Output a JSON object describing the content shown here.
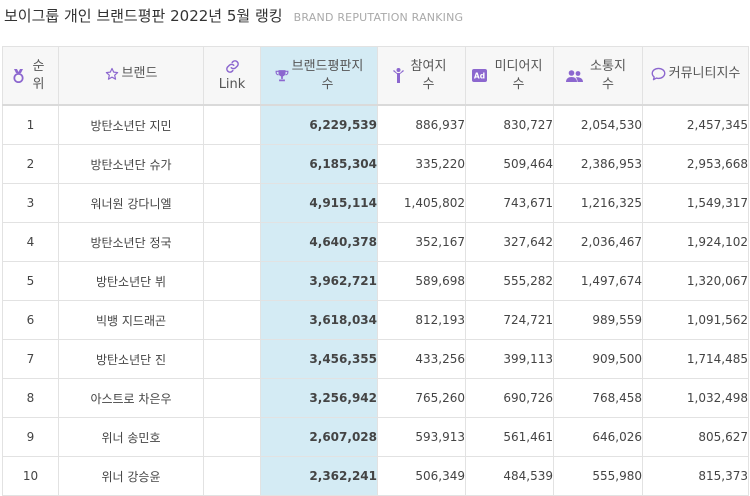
{
  "page": {
    "title": "보이그룹 개인 브랜드평판 2022년 5월 랭킹",
    "subtitle": "BRAND REPUTATION RANKING"
  },
  "table": {
    "headers": {
      "rank": "순위",
      "brand": "브랜드",
      "link": "Link",
      "score": "브랜드평판지수",
      "participation": "참여지수",
      "media": "미디어지수",
      "communication": "소통지수",
      "community": "커뮤니티지수"
    },
    "rows": [
      {
        "rank": "1",
        "brand": "방탄소년단 지민",
        "link": "",
        "score": "6,229,539",
        "participation": "886,937",
        "media": "830,727",
        "communication": "2,054,530",
        "community": "2,457,345"
      },
      {
        "rank": "2",
        "brand": "방탄소년단 슈가",
        "link": "",
        "score": "6,185,304",
        "participation": "335,220",
        "media": "509,464",
        "communication": "2,386,953",
        "community": "2,953,668"
      },
      {
        "rank": "3",
        "brand": "워너원 강다니엘",
        "link": "",
        "score": "4,915,114",
        "participation": "1,405,802",
        "media": "743,671",
        "communication": "1,216,325",
        "community": "1,549,317"
      },
      {
        "rank": "4",
        "brand": "방탄소년단 정국",
        "link": "",
        "score": "4,640,378",
        "participation": "352,167",
        "media": "327,642",
        "communication": "2,036,467",
        "community": "1,924,102"
      },
      {
        "rank": "5",
        "brand": "방탄소년단 뷔",
        "link": "",
        "score": "3,962,721",
        "participation": "589,698",
        "media": "555,282",
        "communication": "1,497,674",
        "community": "1,320,067"
      },
      {
        "rank": "6",
        "brand": "빅뱅 지드래곤",
        "link": "",
        "score": "3,618,034",
        "participation": "812,193",
        "media": "724,721",
        "communication": "989,559",
        "community": "1,091,562"
      },
      {
        "rank": "7",
        "brand": "방탄소년단 진",
        "link": "",
        "score": "3,456,355",
        "participation": "433,256",
        "media": "399,113",
        "communication": "909,500",
        "community": "1,714,485"
      },
      {
        "rank": "8",
        "brand": "아스트로 차은우",
        "link": "",
        "score": "3,256,942",
        "participation": "765,260",
        "media": "690,726",
        "communication": "768,458",
        "community": "1,032,498"
      },
      {
        "rank": "9",
        "brand": "위너 송민호",
        "link": "",
        "score": "2,607,028",
        "participation": "593,913",
        "media": "561,461",
        "communication": "646,026",
        "community": "805,627"
      },
      {
        "rank": "10",
        "brand": "위너 강승윤",
        "link": "",
        "score": "2,362,241",
        "participation": "506,349",
        "media": "484,539",
        "communication": "555,980",
        "community": "815,373"
      }
    ]
  },
  "icons": {
    "rank": "medal-icon",
    "brand": "star-outline-icon",
    "link": "link-icon",
    "score": "trophy-icon",
    "participation": "person-raised-arms-icon",
    "media": "ad-badge-icon",
    "communication": "users-icon",
    "community": "speech-bubble-icon"
  },
  "colors": {
    "icon_accent": "#8c67cf",
    "score_highlight": "#d4ebf4",
    "header_bg": "#f7f7f7",
    "border": "#e2e2e2",
    "subtitle": "#a9a9a9"
  }
}
